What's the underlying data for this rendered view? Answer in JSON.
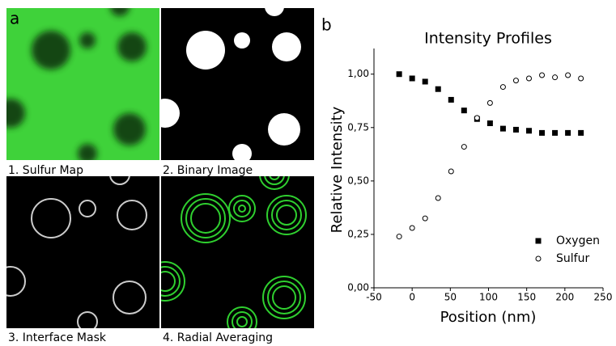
{
  "figure": {
    "labels": [
      "a",
      "b"
    ],
    "captions": [
      "1. Sulfur Map",
      "2. Binary Image",
      "3. Interface Mask",
      "4. Radial Averaging"
    ]
  },
  "chart_data": {
    "type": "scatter",
    "title": "Intensity Profiles",
    "x_label": "Position (nm)",
    "y_label": "Relative Intensity",
    "x": [
      -17,
      0,
      17,
      34,
      51,
      68,
      85,
      102,
      119,
      136,
      153,
      170,
      187,
      204,
      221
    ],
    "series": [
      {
        "name": "Oxygen",
        "color": "#000000",
        "marker": "square",
        "values": [
          1.0,
          0.98,
          0.965,
          0.93,
          0.88,
          0.83,
          0.79,
          0.77,
          0.745,
          0.74,
          0.735,
          0.725,
          0.725,
          0.725,
          0.725
        ]
      },
      {
        "name": "Sulfur",
        "color": "#000000",
        "marker": "circle",
        "values": [
          0.24,
          0.28,
          0.325,
          0.42,
          0.545,
          0.66,
          0.795,
          0.865,
          0.94,
          0.97,
          0.98,
          0.995,
          0.985,
          0.995,
          0.98
        ]
      }
    ],
    "xlim": [
      -50,
      250
    ],
    "xticks": [
      -50,
      0,
      50,
      100,
      150,
      200,
      250
    ],
    "ylim": [
      0,
      1.12
    ],
    "yticks": [
      {
        "value": 0,
        "label": "0,00"
      },
      {
        "value": 0.25,
        "label": "0,25"
      },
      {
        "value": 0.5,
        "label": "0,50"
      },
      {
        "value": 0.75,
        "label": "0,75"
      },
      {
        "value": 1.0,
        "label": "1,00"
      }
    ],
    "legend": "lower right"
  }
}
